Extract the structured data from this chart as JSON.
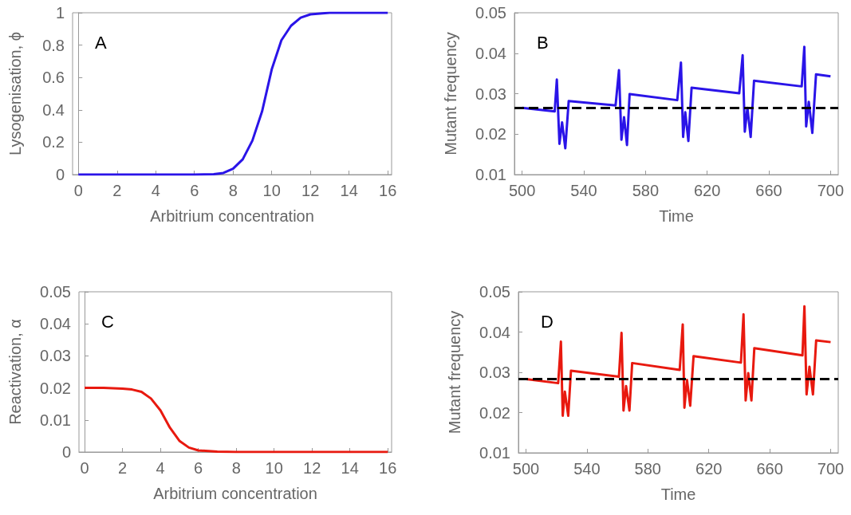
{
  "chart_data": [
    {
      "type": "line",
      "xlabel": "Arbitrium concentration",
      "ylabel": "Lysogenisation, ϕ",
      "annotations": [
        "A"
      ],
      "color": "#2a14e8",
      "marker": "none",
      "xlim": [
        -0.3,
        16.2
      ],
      "xticks": [
        0,
        2,
        4,
        6,
        8,
        10,
        12,
        14,
        16
      ],
      "ylim": [
        0,
        1
      ],
      "yticks": [
        0,
        0.2,
        0.4,
        0.6,
        0.8,
        1
      ],
      "x": [
        0,
        1,
        2,
        3,
        4,
        5,
        6,
        7,
        7.5,
        8,
        8.5,
        9,
        9.5,
        10,
        10.5,
        11,
        11.5,
        12,
        13,
        14,
        15,
        16
      ],
      "values": [
        0,
        0,
        0,
        0,
        0,
        0,
        0,
        0.003,
        0.01,
        0.036,
        0.094,
        0.21,
        0.39,
        0.65,
        0.83,
        0.92,
        0.97,
        0.99,
        1,
        1,
        1,
        1
      ]
    },
    {
      "type": "line",
      "xlabel": "Time",
      "ylabel": "Mutant frequency",
      "annotations": [
        "B"
      ],
      "color": "#2a14e8",
      "marker": "none",
      "xlim": [
        495,
        705
      ],
      "xticks": [
        500,
        540,
        580,
        620,
        660,
        700
      ],
      "ylim": [
        0.01,
        0.05
      ],
      "yticks": [
        0.01,
        0.02,
        0.03,
        0.04,
        0.05
      ],
      "ref_lines": [
        {
          "axis": "y",
          "value": 0.0265,
          "color": "#000000",
          "line_style": "dashed"
        }
      ],
      "x": [
        500,
        521.1,
        522.5,
        524.2,
        525.9,
        528,
        530.2,
        560.6,
        562.8,
        564.4,
        566.1,
        568,
        569.7,
        600.6,
        603,
        604.4,
        605.8,
        607.8,
        609.9,
        640.8,
        643,
        644.4,
        646.1,
        648.2,
        650.4,
        681.3,
        683,
        684.2,
        685.9,
        688.2,
        690.6,
        700
      ],
      "values": [
        0.0265,
        0.0256,
        0.0335,
        0.0176,
        0.0229,
        0.0165,
        0.0282,
        0.0271,
        0.0358,
        0.0186,
        0.0242,
        0.0173,
        0.0299,
        0.0284,
        0.0377,
        0.0193,
        0.0254,
        0.0183,
        0.0315,
        0.0301,
        0.0395,
        0.0206,
        0.0265,
        0.0193,
        0.0332,
        0.0318,
        0.0416,
        0.0219,
        0.028,
        0.0203,
        0.0348,
        0.0343
      ]
    },
    {
      "type": "line",
      "xlabel": "Arbitrium concentration",
      "ylabel": "Reactivation, α",
      "annotations": [
        "C"
      ],
      "color": "#e8190f",
      "marker": "none",
      "xlim": [
        -0.3,
        16.2
      ],
      "xticks": [
        0,
        2,
        4,
        6,
        8,
        10,
        12,
        14,
        16
      ],
      "ylim": [
        0,
        0.05
      ],
      "yticks": [
        0,
        0.01,
        0.02,
        0.03,
        0.04,
        0.05
      ],
      "x": [
        0,
        1,
        2,
        2.5,
        3,
        3.5,
        4,
        4.5,
        5,
        5.5,
        6,
        7,
        8,
        10,
        12,
        14,
        16
      ],
      "values": [
        0.02,
        0.02,
        0.0198,
        0.0195,
        0.0188,
        0.0167,
        0.013,
        0.0076,
        0.0035,
        0.0014,
        0.0005,
        0.0001,
        0,
        0,
        0,
        0,
        0
      ]
    },
    {
      "type": "line",
      "xlabel": "Time",
      "ylabel": "Mutant frequency",
      "annotations": [
        "D"
      ],
      "color": "#e8190f",
      "marker": "none",
      "xlim": [
        495,
        705
      ],
      "xticks": [
        500,
        540,
        580,
        620,
        660,
        700
      ],
      "ylim": [
        0.01,
        0.05
      ],
      "yticks": [
        0.01,
        0.02,
        0.03,
        0.04,
        0.05
      ],
      "ref_lines": [
        {
          "axis": "y",
          "value": 0.0283,
          "color": "#000000",
          "line_style": "dashed"
        }
      ],
      "x": [
        500,
        521.1,
        522.9,
        524.1,
        525.5,
        527.7,
        529.5,
        561,
        562.7,
        564,
        565.7,
        567.9,
        569.7,
        600.9,
        602.9,
        604,
        605.7,
        607.8,
        610,
        641.1,
        642.8,
        644.2,
        645.9,
        648,
        649.9,
        681.5,
        682.8,
        684.2,
        686.1,
        688.4,
        690.5,
        700
      ],
      "values": [
        0.0283,
        0.0273,
        0.0376,
        0.0192,
        0.0252,
        0.0192,
        0.0304,
        0.0289,
        0.0398,
        0.0205,
        0.0266,
        0.0205,
        0.0323,
        0.0306,
        0.0419,
        0.0212,
        0.0281,
        0.0217,
        0.034,
        0.0324,
        0.0444,
        0.023,
        0.0298,
        0.023,
        0.036,
        0.0342,
        0.0464,
        0.0245,
        0.0314,
        0.0245,
        0.0379,
        0.0375
      ]
    }
  ]
}
